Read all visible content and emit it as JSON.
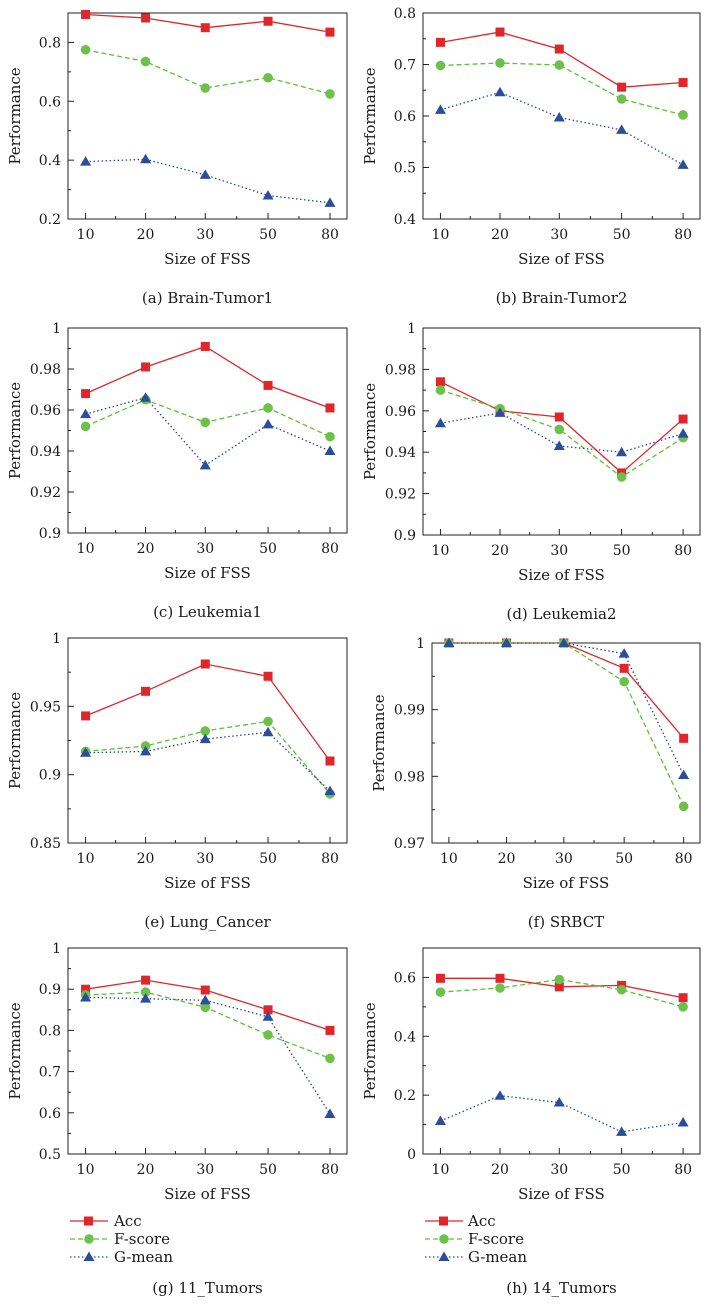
{
  "chart_data": [
    {
      "type": "line",
      "caption": "(a)  Brain-Tumor1",
      "categories": [
        "10",
        "20",
        "30",
        "50",
        "80"
      ],
      "xlabel": "Size of FSS",
      "ylabel": "Performance",
      "ylim": [
        0.2,
        0.9
      ],
      "yticks": [
        0.2,
        0.4,
        0.6,
        0.8
      ],
      "ytick_labels": [
        "0.2",
        "0.4",
        "0.6",
        "0.8"
      ],
      "minor_yticks": [
        0.3,
        0.5,
        0.7
      ],
      "series": [
        {
          "name": "Acc",
          "values": [
            0.895,
            0.883,
            0.85,
            0.872,
            0.835
          ]
        },
        {
          "name": "F-score",
          "values": [
            0.775,
            0.735,
            0.645,
            0.68,
            0.625
          ]
        },
        {
          "name": "G-mean",
          "values": [
            0.395,
            0.403,
            0.35,
            0.28,
            0.255
          ]
        }
      ]
    },
    {
      "type": "line",
      "caption": "(b)  Brain-Tumor2",
      "categories": [
        "10",
        "20",
        "30",
        "50",
        "80"
      ],
      "xlabel": "Size of FSS",
      "ylabel": "Performance",
      "ylim": [
        0.4,
        0.8
      ],
      "yticks": [
        0.4,
        0.5,
        0.6,
        0.7,
        0.8
      ],
      "ytick_labels": [
        "0.4",
        "0.5",
        "0.6",
        "0.7",
        "0.8"
      ],
      "minor_yticks": [
        0.45,
        0.55,
        0.65,
        0.75
      ],
      "series": [
        {
          "name": "Acc",
          "values": [
            0.743,
            0.763,
            0.73,
            0.656,
            0.665
          ]
        },
        {
          "name": "F-score",
          "values": [
            0.698,
            0.703,
            0.699,
            0.633,
            0.602
          ]
        },
        {
          "name": "G-mean",
          "values": [
            0.612,
            0.646,
            0.597,
            0.573,
            0.505
          ]
        }
      ]
    },
    {
      "type": "line",
      "caption": "(c)  Leukemia1",
      "categories": [
        "10",
        "20",
        "30",
        "50",
        "80"
      ],
      "xlabel": "Size of FSS",
      "ylabel": "Performance",
      "ylim": [
        0.9,
        1.0
      ],
      "yticks": [
        0.9,
        0.92,
        0.94,
        0.96,
        0.98,
        1.0
      ],
      "ytick_labels": [
        "0.9",
        "0.92",
        "0.94",
        "0.96",
        "0.98",
        "1"
      ],
      "minor_yticks": [
        0.91,
        0.93,
        0.95,
        0.97,
        0.99
      ],
      "series": [
        {
          "name": "Acc",
          "values": [
            0.968,
            0.981,
            0.991,
            0.972,
            0.961
          ]
        },
        {
          "name": "F-score",
          "values": [
            0.952,
            0.965,
            0.954,
            0.961,
            0.947
          ]
        },
        {
          "name": "G-mean",
          "values": [
            0.958,
            0.966,
            0.933,
            0.953,
            0.94
          ]
        }
      ]
    },
    {
      "type": "line",
      "caption": "(d)  Leukemia2",
      "categories": [
        "10",
        "20",
        "30",
        "50",
        "80"
      ],
      "xlabel": "Size of FSS",
      "ylabel": "Performance",
      "ylim": [
        0.9,
        1.0
      ],
      "yticks": [
        0.9,
        0.92,
        0.94,
        0.96,
        0.98,
        1.0
      ],
      "ytick_labels": [
        "0.9",
        "0.92",
        "0.94",
        "0.96",
        "0.98",
        "1"
      ],
      "minor_yticks": [
        0.91,
        0.93,
        0.95,
        0.97,
        0.99
      ],
      "series": [
        {
          "name": "Acc",
          "values": [
            0.974,
            0.96,
            0.957,
            0.93,
            0.956
          ]
        },
        {
          "name": "F-score",
          "values": [
            0.97,
            0.961,
            0.951,
            0.928,
            0.947
          ]
        },
        {
          "name": "G-mean",
          "values": [
            0.954,
            0.959,
            0.943,
            0.94,
            0.949
          ]
        }
      ]
    },
    {
      "type": "line",
      "caption": "(e)  Lung_Cancer",
      "categories": [
        "10",
        "20",
        "30",
        "50",
        "80"
      ],
      "xlabel": "Size of FSS",
      "ylabel": "Performance",
      "ylim": [
        0.85,
        1.0
      ],
      "yticks": [
        0.85,
        0.9,
        0.95,
        1.0
      ],
      "ytick_labels": [
        "0.85",
        "0.9",
        "0.95",
        "1"
      ],
      "minor_yticks": [
        0.875,
        0.925,
        0.975
      ],
      "series": [
        {
          "name": "Acc",
          "values": [
            0.943,
            0.961,
            0.981,
            0.972,
            0.91
          ]
        },
        {
          "name": "F-score",
          "values": [
            0.917,
            0.921,
            0.932,
            0.939,
            0.886
          ]
        },
        {
          "name": "G-mean",
          "values": [
            0.916,
            0.917,
            0.926,
            0.931,
            0.888
          ]
        }
      ]
    },
    {
      "type": "line",
      "caption": "(f)  SRBCT",
      "categories": [
        "10",
        "20",
        "30",
        "50",
        "80"
      ],
      "xlabel": "Size of FSS",
      "ylabel": "Performance",
      "ylim": [
        0.97,
        1.0
      ],
      "yticks": [
        0.97,
        0.98,
        0.99,
        1.0
      ],
      "ytick_labels": [
        "0.97",
        "0.98",
        "0.99",
        "1"
      ],
      "minor_yticks": [
        0.975,
        0.985,
        0.995
      ],
      "series": [
        {
          "name": "Acc",
          "values": [
            1.0,
            1.0,
            1.0,
            0.9962,
            0.9857
          ]
        },
        {
          "name": "F-score",
          "values": [
            1.0,
            1.0,
            1.0,
            0.9942,
            0.9755
          ]
        },
        {
          "name": "G-mean",
          "values": [
            1.0,
            1.0,
            1.0,
            0.9984,
            0.9802
          ]
        }
      ]
    },
    {
      "type": "line",
      "caption": "(g)  11_Tumors",
      "categories": [
        "10",
        "20",
        "30",
        "50",
        "80"
      ],
      "xlabel": "Size of FSS",
      "ylabel": "Performance",
      "ylim": [
        0.5,
        1.0
      ],
      "yticks": [
        0.5,
        0.6,
        0.7,
        0.8,
        0.9,
        1.0
      ],
      "ytick_labels": [
        "0.5",
        "0.6",
        "0.7",
        "0.8",
        "0.9",
        "1"
      ],
      "minor_yticks": [
        0.55,
        0.65,
        0.75,
        0.85,
        0.95
      ],
      "series": [
        {
          "name": "Acc",
          "values": [
            0.9,
            0.922,
            0.898,
            0.85,
            0.8
          ]
        },
        {
          "name": "F-score",
          "values": [
            0.886,
            0.893,
            0.856,
            0.789,
            0.732
          ]
        },
        {
          "name": "G-mean",
          "values": [
            0.88,
            0.877,
            0.873,
            0.833,
            0.597
          ]
        }
      ]
    },
    {
      "type": "line",
      "caption": "(h)  14_Tumors",
      "categories": [
        "10",
        "20",
        "30",
        "50",
        "80"
      ],
      "xlabel": "Size of FSS",
      "ylabel": "Performance",
      "ylim": [
        0.0,
        0.7
      ],
      "yticks": [
        0.0,
        0.2,
        0.4,
        0.6
      ],
      "ytick_labels": [
        "0",
        "0.2",
        "0.4",
        "0.6"
      ],
      "minor_yticks": [
        0.1,
        0.3,
        0.5
      ],
      "series": [
        {
          "name": "Acc",
          "values": [
            0.597,
            0.597,
            0.568,
            0.573,
            0.531
          ]
        },
        {
          "name": "F-score",
          "values": [
            0.55,
            0.564,
            0.593,
            0.558,
            0.5
          ]
        },
        {
          "name": "G-mean",
          "values": [
            0.112,
            0.198,
            0.175,
            0.075,
            0.107
          ]
        }
      ]
    }
  ],
  "legends": [
    {
      "entries": [
        "Acc",
        "F-score",
        "G-mean"
      ]
    },
    {
      "entries": [
        "Acc",
        "F-score",
        "G-mean"
      ]
    }
  ],
  "colors": {
    "Acc": "#e0262b",
    "F-score": "#5cc238",
    "G-mean": "#274a97",
    "Acc_marker": "#e0262b",
    "F-score_marker": "#6cc14a",
    "G-mean_marker": "#2b4d9c",
    "axis": "#222222"
  }
}
